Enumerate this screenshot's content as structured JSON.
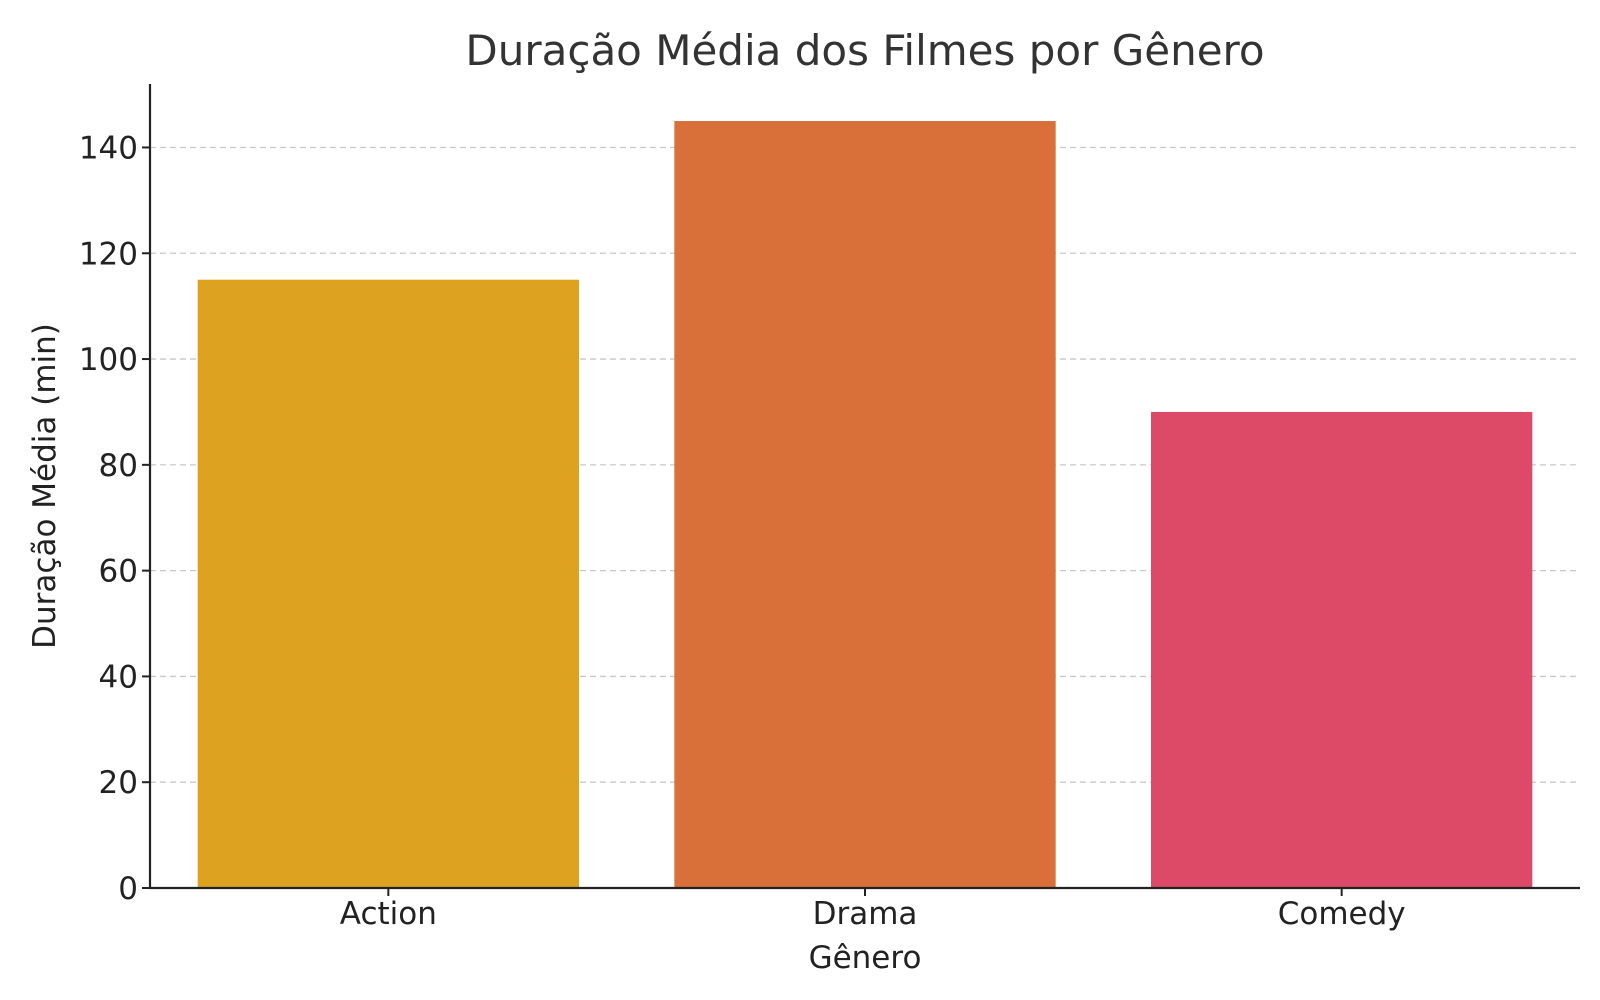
{
  "chart_data": {
    "type": "bar",
    "title": "Duração Média dos Filmes por Gênero",
    "xlabel": "Gênero",
    "ylabel": "Duração Média (min)",
    "categories": [
      "Action",
      "Drama",
      "Comedy"
    ],
    "values": [
      115,
      145,
      90
    ],
    "colors": [
      "#dea221",
      "#d9703a",
      "#dd4a68"
    ],
    "ylim": [
      0,
      152
    ],
    "yticks": [
      0,
      20,
      40,
      60,
      80,
      100,
      120,
      140
    ],
    "grid": "y-dashed",
    "legend": "none"
  }
}
